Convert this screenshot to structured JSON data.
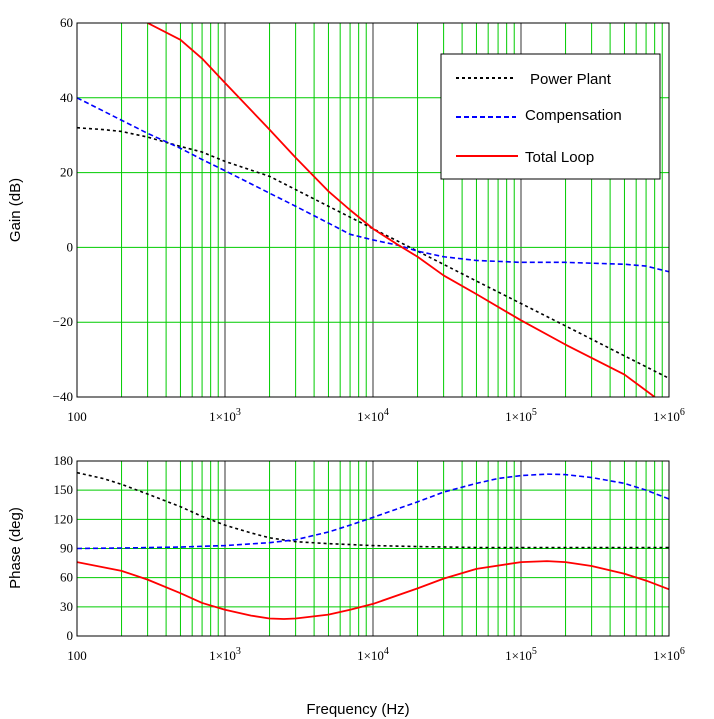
{
  "chart_data": [
    {
      "type": "line",
      "id": "gain",
      "title": "",
      "ylabel": "Gain (dB)",
      "xlabel": "",
      "xscale": "log",
      "xlim": [
        100,
        1000000
      ],
      "ylim": [
        -40,
        60
      ],
      "x_ticks": [
        {
          "base": "100",
          "exp": ""
        },
        {
          "base": "1×10",
          "exp": "3"
        },
        {
          "base": "1×10",
          "exp": "4"
        },
        {
          "base": "1×10",
          "exp": "5"
        },
        {
          "base": "1×10",
          "exp": "6"
        }
      ],
      "y_ticks": [
        {
          "value": -40,
          "label": "−40"
        },
        {
          "value": -20,
          "label": "−20"
        },
        {
          "value": 0,
          "label": "0"
        },
        {
          "value": 20,
          "label": "20"
        },
        {
          "value": 40,
          "label": "40"
        },
        {
          "value": 60,
          "label": "60"
        }
      ],
      "grid": true,
      "legend": {
        "position": "top-right",
        "entries": [
          {
            "label": "Power Plant",
            "color": "#000000",
            "style": "dotted"
          },
          {
            "label": "Compensation",
            "color": "#0000ff",
            "style": "dashed"
          },
          {
            "label": "Total Loop",
            "color": "#ff0000",
            "style": "solid"
          }
        ]
      },
      "series": [
        {
          "name": "Power Plant",
          "color": "#000000",
          "style": "dotted",
          "x": [
            100,
            150,
            200,
            300,
            500,
            700,
            1000,
            2000,
            5000,
            10000,
            20000,
            50000,
            100000,
            200000,
            500000,
            1000000
          ],
          "y": [
            32,
            31.5,
            31,
            29.5,
            27,
            25.5,
            23,
            19,
            11,
            5,
            -1,
            -9,
            -15,
            -21,
            -29,
            -35
          ]
        },
        {
          "name": "Compensation",
          "color": "#0000ff",
          "style": "dashed",
          "x": [
            100,
            150,
            200,
            300,
            500,
            700,
            1000,
            2000,
            3000,
            5000,
            7000,
            10000,
            15000,
            20000,
            30000,
            50000,
            100000,
            200000,
            500000,
            700000,
            1000000
          ],
          "y": [
            40,
            36.5,
            34,
            30.5,
            26.5,
            23.5,
            20.5,
            14.5,
            11,
            6.5,
            3.5,
            2,
            0.5,
            -1,
            -2.5,
            -3.5,
            -4,
            -4,
            -4.5,
            -5,
            -6.5
          ]
        },
        {
          "name": "Total Loop",
          "color": "#ff0000",
          "style": "solid",
          "x": [
            300,
            500,
            700,
            1000,
            2000,
            3000,
            5000,
            7000,
            10000,
            15000,
            20000,
            30000,
            50000,
            100000,
            200000,
            500000,
            800000
          ],
          "y": [
            60,
            55.5,
            50.5,
            44,
            31.5,
            24,
            15,
            10,
            5,
            0.5,
            -2.5,
            -7.5,
            -12.5,
            -19.5,
            -26,
            -34,
            -40
          ]
        }
      ]
    },
    {
      "type": "line",
      "id": "phase",
      "title": "",
      "ylabel": "Phase (deg)",
      "xlabel": "Frequency (Hz)",
      "xscale": "log",
      "xlim": [
        100,
        1000000
      ],
      "ylim": [
        0,
        180
      ],
      "x_ticks": [
        {
          "base": "100",
          "exp": ""
        },
        {
          "base": "1×10",
          "exp": "3"
        },
        {
          "base": "1×10",
          "exp": "4"
        },
        {
          "base": "1×10",
          "exp": "5"
        },
        {
          "base": "1×10",
          "exp": "6"
        }
      ],
      "y_ticks": [
        {
          "value": 0,
          "label": "0"
        },
        {
          "value": 30,
          "label": "30"
        },
        {
          "value": 60,
          "label": "60"
        },
        {
          "value": 90,
          "label": "90"
        },
        {
          "value": 120,
          "label": "120"
        },
        {
          "value": 150,
          "label": "150"
        },
        {
          "value": 180,
          "label": "180"
        }
      ],
      "grid": true,
      "series": [
        {
          "name": "Power Plant",
          "color": "#000000",
          "style": "dotted",
          "x": [
            100,
            150,
            200,
            300,
            500,
            700,
            1000,
            1500,
            2000,
            3000,
            5000,
            10000,
            20000,
            50000,
            100000,
            1000000
          ],
          "y": [
            168,
            162,
            156,
            146,
            133,
            123,
            114,
            106,
            101,
            97,
            95,
            93,
            92,
            91,
            91,
            91
          ]
        },
        {
          "name": "Compensation",
          "color": "#0000ff",
          "style": "dashed",
          "x": [
            100,
            200,
            500,
            1000,
            2000,
            3000,
            5000,
            7000,
            10000,
            20000,
            30000,
            50000,
            70000,
            100000,
            150000,
            200000,
            300000,
            500000,
            700000,
            1000000
          ],
          "y": [
            90,
            90.5,
            91.5,
            93,
            96,
            99,
            107,
            114,
            122,
            138,
            148,
            157,
            162,
            165,
            166.5,
            166,
            163,
            157,
            150,
            141
          ]
        },
        {
          "name": "Total Loop",
          "color": "#ff0000",
          "style": "solid",
          "x": [
            100,
            200,
            300,
            500,
            700,
            1000,
            1500,
            2000,
            2500,
            3000,
            5000,
            7000,
            10000,
            20000,
            30000,
            50000,
            100000,
            150000,
            200000,
            300000,
            500000,
            700000,
            1000000
          ],
          "y": [
            76,
            67,
            58,
            44,
            34,
            27,
            21,
            18,
            17.5,
            18,
            22,
            27,
            33,
            49,
            59,
            69,
            76,
            77,
            76,
            72,
            64,
            57,
            48
          ]
        }
      ]
    }
  ]
}
